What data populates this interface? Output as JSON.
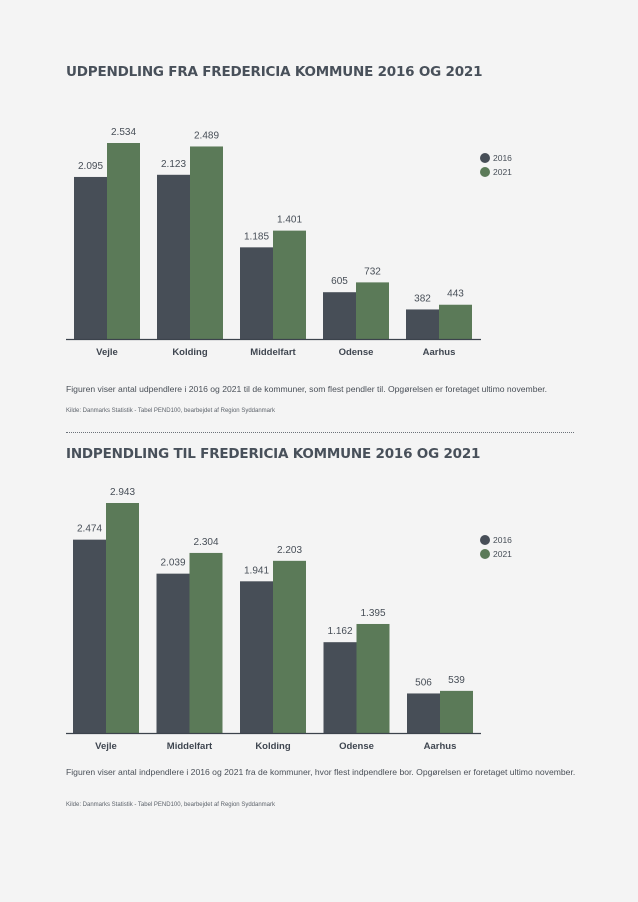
{
  "colors": {
    "y2016": "#474e57",
    "y2021": "#5b7a58",
    "axis": "#3c434c",
    "text": "#3f4650"
  },
  "charts": [
    {
      "title": "UDPENDLING FRA FREDERICIA KOMMUNE 2016 OG 2021",
      "description": "Figuren viser antal udpendlere i 2016 og 2021 til de kommuner, som flest pendler til. Opgørelsen er foretaget ultimo november.",
      "source": "Kilde: Danmarks Statistik - Tabel PEND100, bearbejdet af Region Syddanmark"
    },
    {
      "title": "INDPENDLING TIL FREDERICIA KOMMUNE 2016 OG 2021",
      "description": "Figuren viser antal indpendlere i 2016 og 2021 fra de kommuner, hvor flest indpendlere bor. Opgørelsen er foretaget ultimo november.",
      "source": "Kilde: Danmarks Statistik - Tabel PEND100, bearbejdet af Region Syddanmark"
    }
  ],
  "chart_data": [
    {
      "type": "bar",
      "title": "UDPENDLING FRA FREDERICIA KOMMUNE 2016 OG 2021",
      "categories": [
        "Vejle",
        "Kolding",
        "Middelfart",
        "Odense",
        "Aarhus"
      ],
      "series": [
        {
          "name": "2016",
          "values": [
            2095,
            2123,
            1185,
            605,
            382
          ],
          "labels": [
            "2.095",
            "2.123",
            "1.185",
            "605",
            "382"
          ]
        },
        {
          "name": "2021",
          "values": [
            2534,
            2489,
            1401,
            732,
            443
          ],
          "labels": [
            "2.534",
            "2.489",
            "1.401",
            "732",
            "443"
          ]
        }
      ],
      "ylim": [
        0,
        2534
      ],
      "legend_position": "top-right",
      "grid": false,
      "xlabel": "",
      "ylabel": ""
    },
    {
      "type": "bar",
      "title": "INDPENDLING TIL FREDERICIA KOMMUNE 2016 OG 2021",
      "categories": [
        "Vejle",
        "Middelfart",
        "Kolding",
        "Odense",
        "Aarhus"
      ],
      "series": [
        {
          "name": "2016",
          "values": [
            2474,
            2039,
            1941,
            1162,
            506
          ],
          "labels": [
            "2.474",
            "2.039",
            "1.941",
            "1.162",
            "506"
          ]
        },
        {
          "name": "2021",
          "values": [
            2943,
            2304,
            2203,
            1395,
            539
          ],
          "labels": [
            "2.943",
            "2.304",
            "2.203",
            "1.395",
            "539"
          ]
        }
      ],
      "ylim": [
        0,
        2943
      ],
      "legend_position": "top-right",
      "grid": false,
      "xlabel": "",
      "ylabel": ""
    }
  ]
}
